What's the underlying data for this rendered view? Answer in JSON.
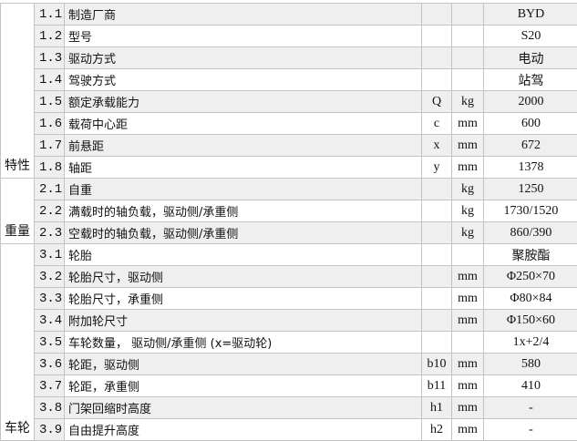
{
  "groups": [
    {
      "label": "特性",
      "rows": [
        {
          "no": "1.1",
          "name": "制造厂商",
          "sym": "",
          "unit": "",
          "val": "BYD"
        },
        {
          "no": "1.2",
          "name": "型号",
          "sym": "",
          "unit": "",
          "val": "S20"
        },
        {
          "no": "1.3",
          "name": "驱动方式",
          "sym": "",
          "unit": "",
          "val": "电动"
        },
        {
          "no": "1.4",
          "name": "驾驶方式",
          "sym": "",
          "unit": "",
          "val": "站驾"
        },
        {
          "no": "1.5",
          "name": "额定承载能力",
          "sym": "Q",
          "unit": "kg",
          "val": "2000"
        },
        {
          "no": "1.6",
          "name": "载荷中心距",
          "sym": "c",
          "unit": "mm",
          "val": "600"
        },
        {
          "no": "1.7",
          "name": "前悬距",
          "sym": "x",
          "unit": "mm",
          "val": "672"
        },
        {
          "no": "1.8",
          "name": "轴距",
          "sym": "y",
          "unit": "mm",
          "val": "1378"
        }
      ]
    },
    {
      "label": "重量",
      "rows": [
        {
          "no": "2.1",
          "name": "自重",
          "sym": "",
          "unit": "kg",
          "val": "1250"
        },
        {
          "no": "2.2",
          "name": "满载时的轴负载，驱动侧/承重侧",
          "sym": "",
          "unit": "kg",
          "val": "1730/1520"
        },
        {
          "no": "2.3",
          "name": "空载时的轴负载，驱动侧/承重侧",
          "sym": "",
          "unit": "kg",
          "val": "860/390"
        }
      ]
    },
    {
      "label": "车轮",
      "rows": [
        {
          "no": "3.1",
          "name": "轮胎",
          "sym": "",
          "unit": "",
          "val": "聚胺酯"
        },
        {
          "no": "3.2",
          "name": "轮胎尺寸，驱动侧",
          "sym": "",
          "unit": "mm",
          "val": "Φ250×70"
        },
        {
          "no": "3.3",
          "name": "轮胎尺寸，承重侧",
          "sym": "",
          "unit": "mm",
          "val": "Φ80×84"
        },
        {
          "no": "3.4",
          "name": "附加轮尺寸",
          "sym": "",
          "unit": "mm",
          "val": "Φ150×60"
        },
        {
          "no": "3.5",
          "name": "车轮数量， 驱动侧/承重侧 (x=驱动轮)",
          "sym": "",
          "unit": "",
          "val": "1x+2/4"
        },
        {
          "no": "3.6",
          "name": "轮距，驱动侧",
          "sym": "b10",
          "unit": "mm",
          "val": "580"
        },
        {
          "no": "3.7",
          "name": "轮距，承重侧",
          "sym": "b11",
          "unit": "mm",
          "val": "410"
        },
        {
          "no": "3.8",
          "name": "门架回缩时高度",
          "sym": "h1",
          "unit": "mm",
          "val": "-"
        },
        {
          "no": "3.9",
          "name": "自由提升高度",
          "sym": "h2",
          "unit": "mm",
          "val": "-"
        }
      ]
    }
  ]
}
